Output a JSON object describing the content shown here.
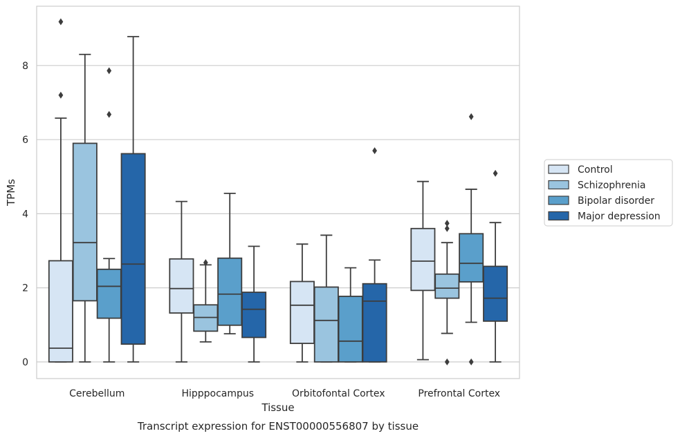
{
  "chart_data": {
    "type": "box",
    "xlabel": "Tissue",
    "ylabel": "TPMs",
    "caption": "Transcript expression for ENST00000556807 by tissue",
    "ylim": [
      -0.45,
      9.6
    ],
    "yticks": [
      0,
      2,
      4,
      6,
      8
    ],
    "grid": "horizontal",
    "legend_position": "right",
    "categories": [
      "Cerebellum",
      "Hipppocampus",
      "Orbitofontal Cortex",
      "Prefrontal Cortex"
    ],
    "series": [
      {
        "name": "Control",
        "color": "#d6e5f4",
        "boxes": [
          {
            "low": 0.0,
            "q1": 0.0,
            "median": 0.37,
            "q3": 2.73,
            "high": 6.58,
            "outliers": [
              7.2,
              9.18
            ]
          },
          {
            "low": 0.0,
            "q1": 1.32,
            "median": 1.98,
            "q3": 2.78,
            "high": 4.33,
            "outliers": []
          },
          {
            "low": 0.0,
            "q1": 0.5,
            "median": 1.53,
            "q3": 2.17,
            "high": 3.18,
            "outliers": []
          },
          {
            "low": 0.06,
            "q1": 1.93,
            "median": 2.72,
            "q3": 3.6,
            "high": 4.87,
            "outliers": []
          }
        ]
      },
      {
        "name": "Schizophrenia",
        "color": "#9ac4df",
        "boxes": [
          {
            "low": 0.0,
            "q1": 1.65,
            "median": 3.22,
            "q3": 5.9,
            "high": 8.3,
            "outliers": []
          },
          {
            "low": 0.54,
            "q1": 0.83,
            "median": 1.2,
            "q3": 1.54,
            "high": 2.62,
            "outliers": [
              2.68
            ]
          },
          {
            "low": 0.0,
            "q1": 0.0,
            "median": 1.12,
            "q3": 2.02,
            "high": 3.42,
            "outliers": []
          },
          {
            "low": 0.77,
            "q1": 1.72,
            "median": 1.99,
            "q3": 2.37,
            "high": 3.22,
            "outliers": [
              0.0,
              3.6,
              3.74
            ]
          }
        ]
      },
      {
        "name": "Bipolar disorder",
        "color": "#5a9fcb",
        "boxes": [
          {
            "low": 0.0,
            "q1": 1.18,
            "median": 2.04,
            "q3": 2.5,
            "high": 2.79,
            "outliers": [
              6.68,
              7.86
            ]
          },
          {
            "low": 0.76,
            "q1": 0.99,
            "median": 1.83,
            "q3": 2.8,
            "high": 4.55,
            "outliers": []
          },
          {
            "low": 0.0,
            "q1": 0.0,
            "median": 0.56,
            "q3": 1.77,
            "high": 2.54,
            "outliers": []
          },
          {
            "low": 1.07,
            "q1": 2.16,
            "median": 2.66,
            "q3": 3.46,
            "high": 4.66,
            "outliers": [
              0.0,
              6.62
            ]
          }
        ]
      },
      {
        "name": "Major depression",
        "color": "#2566a9",
        "boxes": [
          {
            "low": 0.0,
            "q1": 0.48,
            "median": 2.64,
            "q3": 5.62,
            "high": 8.78,
            "outliers": []
          },
          {
            "low": 0.0,
            "q1": 0.66,
            "median": 1.42,
            "q3": 1.88,
            "high": 3.12,
            "outliers": []
          },
          {
            "low": 0.0,
            "q1": 0.0,
            "median": 1.64,
            "q3": 2.11,
            "high": 2.75,
            "outliers": [
              5.7
            ]
          },
          {
            "low": 0.0,
            "q1": 1.1,
            "median": 1.72,
            "q3": 2.58,
            "high": 3.76,
            "outliers": [
              5.09
            ]
          }
        ]
      }
    ]
  }
}
